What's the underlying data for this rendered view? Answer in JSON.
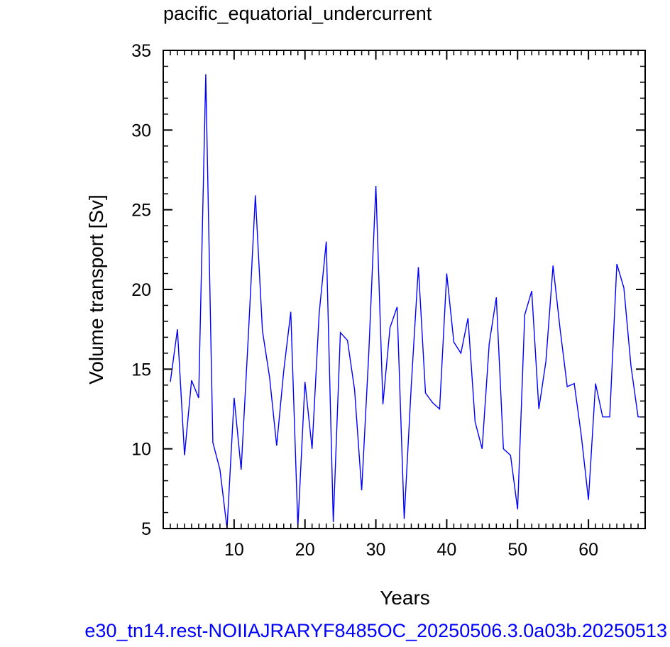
{
  "chart_data": {
    "type": "line",
    "title": "pacific_equatorial_undercurrent",
    "xlabel": "Years",
    "ylabel": "Volume transport [Sv]",
    "xlim": [
      0,
      68
    ],
    "ylim": [
      5,
      35
    ],
    "x_ticks": [
      10,
      20,
      30,
      40,
      50,
      60
    ],
    "y_ticks": [
      5,
      10,
      15,
      20,
      25,
      30,
      35
    ],
    "grid": false,
    "footer": "e30_tn14.rest-NOIIAJRARYF8485OC_20250506.3.0a03b.20250513",
    "series": [
      {
        "color": "#0000ff",
        "x": [
          1,
          2,
          3,
          4,
          5,
          6,
          7,
          8,
          9,
          10,
          11,
          12,
          13,
          14,
          15,
          16,
          17,
          18,
          19,
          20,
          21,
          22,
          23,
          24,
          25,
          26,
          27,
          28,
          29,
          30,
          31,
          32,
          33,
          34,
          35,
          36,
          37,
          38,
          39,
          40,
          41,
          42,
          43,
          44,
          45,
          46,
          47,
          48,
          49,
          50,
          51,
          52,
          53,
          54,
          55,
          56,
          57,
          58,
          59,
          60,
          61,
          62,
          63,
          64,
          65,
          66,
          67,
          68
        ],
        "values": [
          14.2,
          17.5,
          9.6,
          14.3,
          13.2,
          33.5,
          10.4,
          8.7,
          5.0,
          13.2,
          8.7,
          17.0,
          25.9,
          17.4,
          14.5,
          10.2,
          14.9,
          18.6,
          5.1,
          14.2,
          10.0,
          18.5,
          23.0,
          5.4,
          17.3,
          16.8,
          13.7,
          7.4,
          16.0,
          26.5,
          12.8,
          17.6,
          18.9,
          5.6,
          14.0,
          21.4,
          13.5,
          12.9,
          12.5,
          21.0,
          16.7,
          16.0,
          18.2,
          11.7,
          10.0,
          16.6,
          19.5,
          10.0,
          9.6,
          6.2,
          18.4,
          19.9,
          12.5,
          15.5,
          21.5,
          17.5,
          13.9,
          14.1,
          10.8,
          6.8,
          14.1,
          12.0,
          12.0,
          21.6,
          20.1,
          15.2,
          12.0,
          12.0
        ]
      }
    ]
  }
}
